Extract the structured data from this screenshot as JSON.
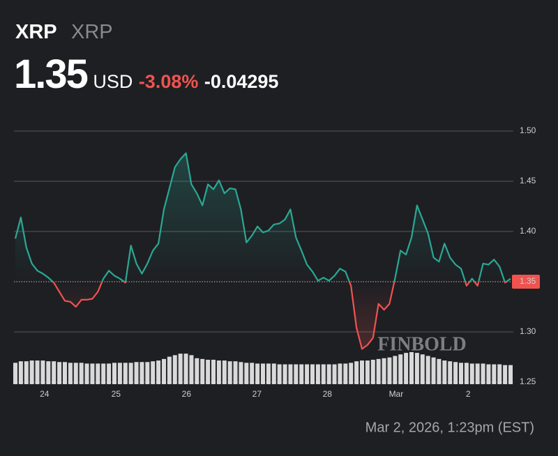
{
  "chart_data": {
    "type": "line",
    "title": "XRP",
    "subtitle": "XRP",
    "price": "1.35",
    "currency": "USD",
    "change_percent": "-3.08%",
    "change": "-0.04295",
    "timestamp": "Mar 2, 2026, 1:23pm (EST)",
    "watermark": "FINBOLD",
    "up_color": "#2aa894",
    "down_color": "#f0534f",
    "volume_color": "#d9d9d9",
    "values": [
      1.393,
      1.414,
      1.384,
      1.368,
      1.361,
      1.358,
      1.354,
      1.349,
      1.34,
      1.331,
      1.33,
      1.325,
      1.332,
      1.332,
      1.333,
      1.34,
      1.353,
      1.361,
      1.356,
      1.353,
      1.349,
      1.386,
      1.368,
      1.358,
      1.368,
      1.381,
      1.388,
      1.422,
      1.443,
      1.464,
      1.472,
      1.478,
      1.447,
      1.438,
      1.426,
      1.447,
      1.442,
      1.451,
      1.438,
      1.443,
      1.442,
      1.422,
      1.389,
      1.396,
      1.405,
      1.399,
      1.401,
      1.407,
      1.408,
      1.412,
      1.422,
      1.394,
      1.381,
      1.367,
      1.36,
      1.351,
      1.354,
      1.351,
      1.356,
      1.363,
      1.36,
      1.346,
      1.304,
      1.283,
      1.287,
      1.294,
      1.328,
      1.322,
      1.328,
      1.353,
      1.381,
      1.377,
      1.394,
      1.426,
      1.412,
      1.398,
      1.374,
      1.37,
      1.388,
      1.374,
      1.367,
      1.363,
      1.346,
      1.353,
      1.346,
      1.368,
      1.367,
      1.372,
      1.365,
      1.349,
      1.353
    ],
    "volume": [
      28,
      30,
      30,
      31,
      31,
      31,
      30,
      30,
      29,
      29,
      28,
      28,
      28,
      27,
      27,
      27,
      27,
      27,
      28,
      28,
      28,
      28,
      29,
      29,
      29,
      30,
      31,
      33,
      36,
      38,
      40,
      40,
      38,
      34,
      33,
      32,
      32,
      31,
      31,
      30,
      30,
      29,
      28,
      28,
      27,
      27,
      27,
      27,
      26,
      26,
      26,
      26,
      26,
      26,
      26,
      26,
      26,
      26,
      26,
      27,
      27,
      28,
      30,
      31,
      31,
      32,
      33,
      34,
      35,
      37,
      39,
      41,
      42,
      41,
      39,
      37,
      35,
      33,
      31,
      30,
      29,
      28,
      28,
      27,
      27,
      27,
      26,
      26,
      26,
      25,
      25
    ],
    "xlim": [
      0,
      90
    ],
    "xticks": [
      {
        "value": 5.3,
        "label": "24"
      },
      {
        "value": 18.3,
        "label": "25"
      },
      {
        "value": 31.1,
        "label": "26"
      },
      {
        "value": 43.9,
        "label": "27"
      },
      {
        "value": 56.7,
        "label": "28"
      },
      {
        "value": 69.2,
        "label": "Mar"
      },
      {
        "value": 82.3,
        "label": "2"
      }
    ],
    "ylim": [
      1.25,
      1.5
    ],
    "yticks": [
      1.25,
      {
        "value": 1.3,
        "label": "1.30"
      },
      1.35,
      {
        "value": 1.4,
        "label": "1.40"
      },
      1.45,
      {
        "value": 1.5,
        "label": "1.50"
      }
    ],
    "grid": true
  }
}
